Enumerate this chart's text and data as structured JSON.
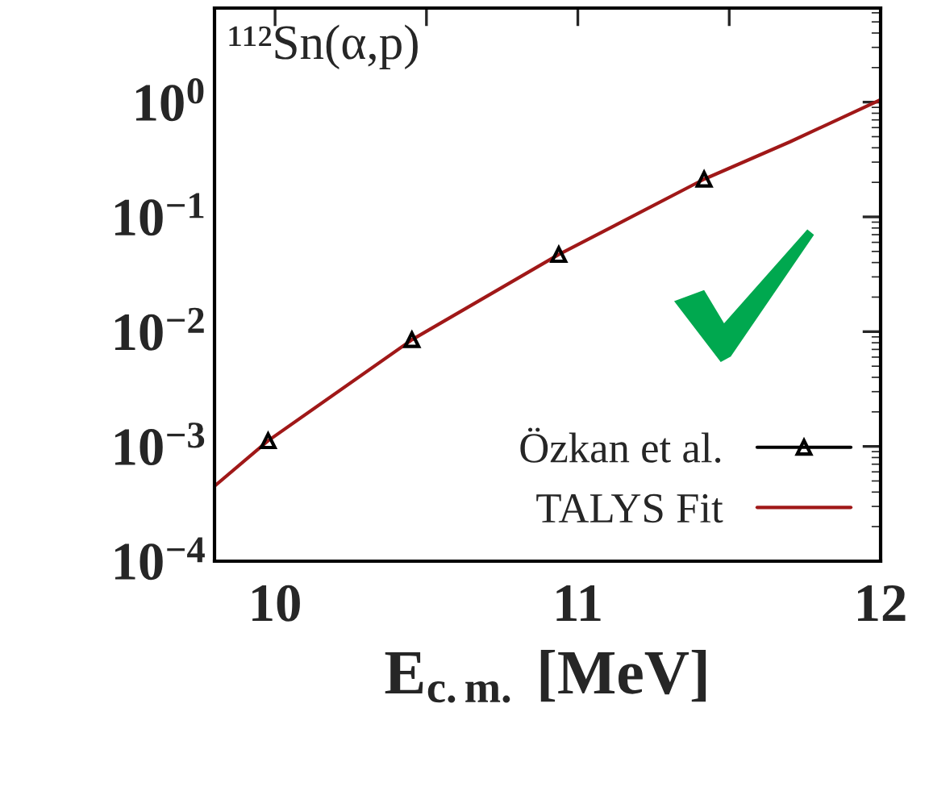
{
  "chart_data": {
    "type": "line",
    "xlabel": "E$_{c.m.}$ [MeV]",
    "log": "y",
    "xlim": [
      9.8,
      12
    ],
    "xticks": [
      10,
      {
        "value": 10.5,
        "label": null
      },
      11,
      {
        "value": 11.5,
        "label": null
      },
      12
    ],
    "ylim": [
      0.0001,
      6.6
    ],
    "yticks": [
      {
        "value": 1,
        "label": "10$^{0}$"
      },
      {
        "value": 0.1,
        "label": "10$^{−1}$"
      },
      {
        "value": 0.01,
        "label": "10$^{−2}$"
      },
      {
        "value": 0.001,
        "label": "10$^{−3}$"
      },
      {
        "value": 0.0001,
        "label": "10$^{−4}$"
      }
    ],
    "annotations": [
      "¹¹²Sn(α,p)"
    ],
    "legend": "bottom right",
    "grid": false,
    "series": [
      {
        "name": "Özkan et al.",
        "type": "scatter",
        "marker": "triangle",
        "color": "#000000",
        "x": [
          9.977,
          10.452,
          10.937,
          11.417
        ],
        "values": [
          0.00112,
          0.0085,
          0.047,
          0.213
        ]
      },
      {
        "name": "TALYS Fit",
        "marker": "none",
        "color": "#a01818",
        "x": [
          9.8,
          9.977,
          10.452,
          10.937,
          11.417,
          11.7,
          12
        ],
        "values": [
          0.00045,
          0.00112,
          0.0085,
          0.047,
          0.213,
          0.45,
          1.05
        ]
      }
    ]
  }
}
